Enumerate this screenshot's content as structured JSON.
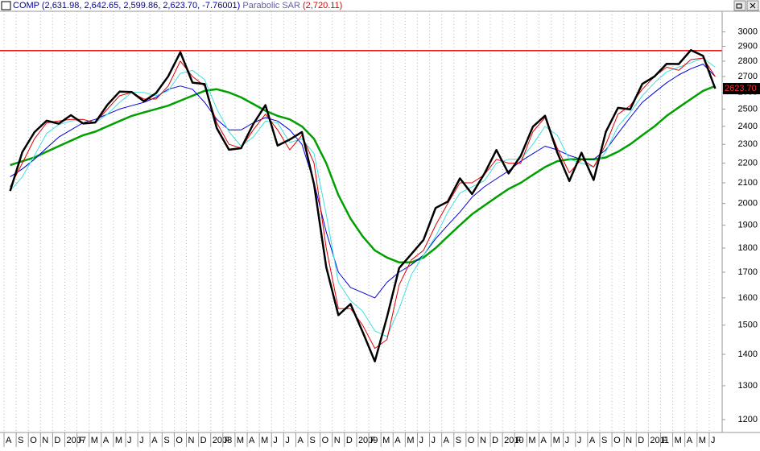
{
  "chart_data": {
    "type": "line",
    "title": "COMP (2,631.98, 2,642.65, 2,599.86, 2,623.70, -7.76001)",
    "indicator": "Parabolic SAR",
    "indicator_value": "(2,720.11)",
    "log_scale": true,
    "grid": "vertical",
    "ylim": [
      1164,
      3150
    ],
    "yticks": [
      1200,
      1300,
      1400,
      1500,
      1600,
      1700,
      1800,
      1900,
      2000,
      2100,
      2200,
      2300,
      2400,
      2500,
      2600,
      2700,
      2800,
      2900,
      3000
    ],
    "xlim": [
      "2006-08",
      "2011-07"
    ],
    "xticks": [
      {
        "value": "2006-08",
        "label": "A"
      },
      {
        "value": "2006-09",
        "label": "S"
      },
      {
        "value": "2006-10",
        "label": "O"
      },
      {
        "value": "2006-11",
        "label": "N"
      },
      {
        "value": "2006-12",
        "label": "D"
      },
      {
        "value": "2007-01",
        "label": "2007"
      },
      {
        "value": "2007-02",
        "label": "F"
      },
      {
        "value": "2007-03",
        "label": "M"
      },
      {
        "value": "2007-04",
        "label": "A"
      },
      {
        "value": "2007-05",
        "label": "M"
      },
      {
        "value": "2007-06",
        "label": "J"
      },
      {
        "value": "2007-07",
        "label": "J"
      },
      {
        "value": "2007-08",
        "label": "A"
      },
      {
        "value": "2007-09",
        "label": "S"
      },
      {
        "value": "2007-10",
        "label": "O"
      },
      {
        "value": "2007-11",
        "label": "N"
      },
      {
        "value": "2007-12",
        "label": "D"
      },
      {
        "value": "2008-01",
        "label": "2008"
      },
      {
        "value": "2008-02",
        "label": "F"
      },
      {
        "value": "2008-03",
        "label": "M"
      },
      {
        "value": "2008-04",
        "label": "A"
      },
      {
        "value": "2008-05",
        "label": "M"
      },
      {
        "value": "2008-06",
        "label": "J"
      },
      {
        "value": "2008-07",
        "label": "J"
      },
      {
        "value": "2008-08",
        "label": "A"
      },
      {
        "value": "2008-09",
        "label": "S"
      },
      {
        "value": "2008-10",
        "label": "O"
      },
      {
        "value": "2008-11",
        "label": "N"
      },
      {
        "value": "2008-12",
        "label": "D"
      },
      {
        "value": "2009-01",
        "label": "2009"
      },
      {
        "value": "2009-02",
        "label": "F"
      },
      {
        "value": "2009-03",
        "label": "M"
      },
      {
        "value": "2009-04",
        "label": "A"
      },
      {
        "value": "2009-05",
        "label": "M"
      },
      {
        "value": "2009-06",
        "label": "J"
      },
      {
        "value": "2009-07",
        "label": "J"
      },
      {
        "value": "2009-08",
        "label": "A"
      },
      {
        "value": "2009-09",
        "label": "S"
      },
      {
        "value": "2009-10",
        "label": "O"
      },
      {
        "value": "2009-11",
        "label": "N"
      },
      {
        "value": "2009-12",
        "label": "D"
      },
      {
        "value": "2010-01",
        "label": "2010"
      },
      {
        "value": "2010-02",
        "label": "F"
      },
      {
        "value": "2010-03",
        "label": "M"
      },
      {
        "value": "2010-04",
        "label": "A"
      },
      {
        "value": "2010-05",
        "label": "M"
      },
      {
        "value": "2010-06",
        "label": "J"
      },
      {
        "value": "2010-07",
        "label": "J"
      },
      {
        "value": "2010-08",
        "label": "A"
      },
      {
        "value": "2010-09",
        "label": "S"
      },
      {
        "value": "2010-10",
        "label": "O"
      },
      {
        "value": "2010-11",
        "label": "N"
      },
      {
        "value": "2010-12",
        "label": "D"
      },
      {
        "value": "2011-01",
        "label": "2011"
      },
      {
        "value": "2011-02",
        "label": "F"
      },
      {
        "value": "2011-03",
        "label": "M"
      },
      {
        "value": "2011-04",
        "label": "A"
      },
      {
        "value": "2011-05",
        "label": "M"
      },
      {
        "value": "2011-06",
        "label": "J"
      }
    ],
    "x": [
      "2006-08",
      "2006-09",
      "2006-10",
      "2006-11",
      "2006-12",
      "2007-01",
      "2007-02",
      "2007-03",
      "2007-04",
      "2007-05",
      "2007-06",
      "2007-07",
      "2007-08",
      "2007-09",
      "2007-10",
      "2007-11",
      "2007-12",
      "2008-01",
      "2008-02",
      "2008-03",
      "2008-04",
      "2008-05",
      "2008-06",
      "2008-07",
      "2008-08",
      "2008-09",
      "2008-10",
      "2008-11",
      "2008-12",
      "2009-01",
      "2009-02",
      "2009-03",
      "2009-04",
      "2009-05",
      "2009-06",
      "2009-07",
      "2009-08",
      "2009-09",
      "2009-10",
      "2009-11",
      "2009-12",
      "2010-01",
      "2010-02",
      "2010-03",
      "2010-04",
      "2010-05",
      "2010-06",
      "2010-07",
      "2010-08",
      "2010-09",
      "2010-10",
      "2010-11",
      "2010-12",
      "2011-01",
      "2011-02",
      "2011-03",
      "2011-04",
      "2011-05",
      "2011-06"
    ],
    "series": [
      {
        "color": "#00a000",
        "line_width": 2.5,
        "values": [
          2190,
          2210,
          2230,
          2260,
          2290,
          2320,
          2350,
          2370,
          2400,
          2430,
          2460,
          2480,
          2500,
          2520,
          2550,
          2580,
          2610,
          2620,
          2600,
          2570,
          2530,
          2490,
          2460,
          2440,
          2400,
          2330,
          2200,
          2040,
          1930,
          1850,
          1790,
          1760,
          1740,
          1740,
          1760,
          1800,
          1850,
          1900,
          1950,
          1990,
          2030,
          2070,
          2100,
          2140,
          2180,
          2210,
          2220,
          2220,
          2220,
          2230,
          2260,
          2300,
          2350,
          2400,
          2460,
          2510,
          2560,
          2610,
          2640
        ]
      },
      {
        "color": "#0000e0",
        "line_width": 1,
        "values": [
          2130,
          2170,
          2220,
          2280,
          2340,
          2380,
          2420,
          2440,
          2470,
          2500,
          2520,
          2540,
          2570,
          2620,
          2640,
          2620,
          2540,
          2440,
          2380,
          2380,
          2420,
          2450,
          2430,
          2380,
          2300,
          2100,
          1870,
          1700,
          1640,
          1620,
          1600,
          1660,
          1700,
          1730,
          1770,
          1840,
          1900,
          1960,
          2030,
          2080,
          2120,
          2160,
          2210,
          2250,
          2290,
          2270,
          2240,
          2220,
          2220,
          2270,
          2360,
          2450,
          2540,
          2600,
          2660,
          2710,
          2750,
          2780,
          2700
        ]
      },
      {
        "color": "#40e0e0",
        "line_width": 1,
        "values": [
          2060,
          2130,
          2240,
          2360,
          2410,
          2430,
          2440,
          2420,
          2470,
          2540,
          2600,
          2600,
          2580,
          2610,
          2720,
          2740,
          2680,
          2500,
          2370,
          2290,
          2340,
          2430,
          2420,
          2310,
          2330,
          2250,
          1950,
          1660,
          1590,
          1550,
          1480,
          1460,
          1560,
          1690,
          1770,
          1850,
          1960,
          2050,
          2080,
          2110,
          2200,
          2220,
          2220,
          2300,
          2400,
          2350,
          2220,
          2200,
          2180,
          2260,
          2400,
          2480,
          2580,
          2660,
          2730,
          2760,
          2790,
          2820,
          2760
        ]
      },
      {
        "color": "#e00000",
        "line_width": 1,
        "values": [
          2080,
          2200,
          2330,
          2420,
          2430,
          2440,
          2440,
          2420,
          2500,
          2580,
          2600,
          2560,
          2560,
          2640,
          2800,
          2700,
          2640,
          2420,
          2300,
          2280,
          2380,
          2470,
          2380,
          2270,
          2350,
          2200,
          1800,
          1560,
          1560,
          1500,
          1420,
          1450,
          1650,
          1750,
          1790,
          1900,
          2000,
          2100,
          2100,
          2140,
          2220,
          2200,
          2200,
          2370,
          2450,
          2280,
          2150,
          2220,
          2180,
          2300,
          2470,
          2520,
          2620,
          2700,
          2760,
          2740,
          2810,
          2820,
          2700
        ]
      },
      {
        "color": "#000000",
        "line_width": 2.5,
        "values": [
          2060,
          2258,
          2367,
          2432,
          2415,
          2464,
          2416,
          2422,
          2525,
          2605,
          2603,
          2546,
          2596,
          2701,
          2859,
          2661,
          2652,
          2389,
          2271,
          2279,
          2413,
          2523,
          2293,
          2326,
          2368,
          2092,
          1721,
          1536,
          1577,
          1476,
          1377,
          1529,
          1717,
          1774,
          1835,
          1979,
          2009,
          2122,
          2045,
          2145,
          2269,
          2147,
          2238,
          2398,
          2461,
          2257,
          2109,
          2255,
          2114,
          2369,
          2507,
          2498,
          2653,
          2700,
          2782,
          2781,
          2874,
          2835,
          2624
        ]
      }
    ],
    "hline": 2870,
    "hline_color": "#e00000",
    "last_value": {
      "value": 2623.7,
      "label": "2623.70"
    }
  }
}
